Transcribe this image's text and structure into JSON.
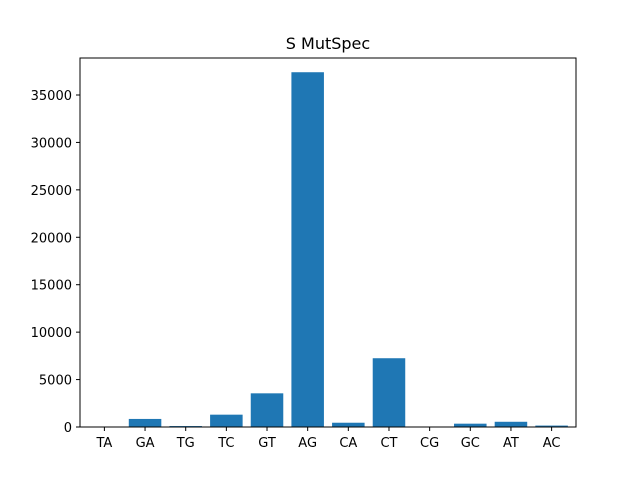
{
  "chart_data": {
    "type": "bar",
    "title": "S MutSpec",
    "xlabel": "",
    "ylabel": "",
    "categories": [
      "TA",
      "GA",
      "TG",
      "TC",
      "GT",
      "AG",
      "CA",
      "CT",
      "CG",
      "GC",
      "AT",
      "AC"
    ],
    "values": [
      30,
      850,
      100,
      1300,
      3550,
      37400,
      450,
      7250,
      20,
      350,
      550,
      150
    ],
    "ylim": [
      0,
      38900
    ],
    "yticks": [
      0,
      5000,
      10000,
      15000,
      20000,
      25000,
      30000,
      35000
    ],
    "ytick_labels": [
      "0",
      "5000",
      "10000",
      "15000",
      "20000",
      "25000",
      "30000",
      "35000"
    ],
    "bar_color": "#1f77b4",
    "grid": false,
    "legend": "none"
  }
}
